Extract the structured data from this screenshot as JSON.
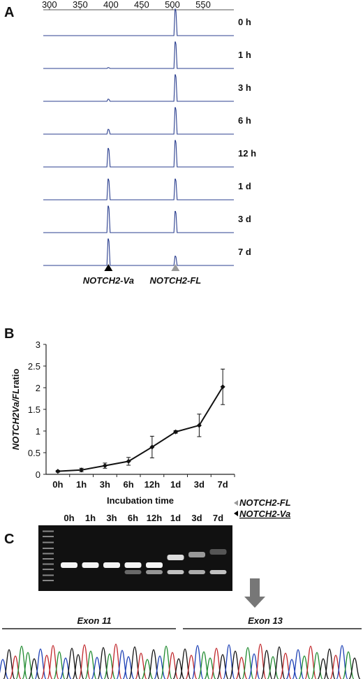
{
  "panels": {
    "a": "A",
    "b": "B",
    "c": "C"
  },
  "chart_data": [
    {
      "type": "line",
      "panel": "A",
      "x_axis_ticks": [
        "300",
        "350",
        "400",
        "450",
        "500",
        "550"
      ],
      "xlim": [
        290,
        600
      ],
      "peak_positions": [
        396,
        505
      ],
      "traces": [
        {
          "label": "0 h",
          "heights": [
            0.0,
            1.0
          ]
        },
        {
          "label": "1 h",
          "heights": [
            0.03,
            1.0
          ]
        },
        {
          "label": "3 h",
          "heights": [
            0.08,
            1.0
          ]
        },
        {
          "label": "6 h",
          "heights": [
            0.18,
            1.0
          ]
        },
        {
          "label": "12 h",
          "heights": [
            0.7,
            1.0
          ]
        },
        {
          "label": "1 d",
          "heights": [
            0.78,
            0.78
          ]
        },
        {
          "label": "3 d",
          "heights": [
            1.0,
            0.8
          ]
        },
        {
          "label": "7 d",
          "heights": [
            1.0,
            0.35
          ]
        }
      ],
      "markers": [
        {
          "label": "NOTCH2-Va",
          "color": "#000000"
        },
        {
          "label": "NOTCH2-FL",
          "color": "#999999"
        }
      ]
    },
    {
      "type": "line",
      "panel": "B",
      "categories": [
        "0h",
        "1h",
        "3h",
        "6h",
        "12h",
        "1d",
        "3d",
        "7d"
      ],
      "values": [
        0.07,
        0.1,
        0.2,
        0.3,
        0.63,
        0.98,
        1.13,
        2.02
      ],
      "errors": [
        0.02,
        0.04,
        0.06,
        0.09,
        0.25,
        0.03,
        0.26,
        0.41
      ],
      "ylabel_a": "NOTCH2",
      "ylabel_b": "Va/FL",
      "ylabel_c": "ratio",
      "xlabel": "Incubation time",
      "yticks": [
        "0",
        "0.5",
        "1",
        "1.5",
        "2",
        "2.5",
        "3"
      ],
      "ylim": [
        0,
        3
      ]
    }
  ],
  "gel": {
    "lanes": [
      "0h",
      "1h",
      "3h",
      "6h",
      "12h",
      "1d",
      "3d",
      "7d"
    ],
    "fl_intensity": [
      1.0,
      1.0,
      1.0,
      1.0,
      1.0,
      0.9,
      0.6,
      0.3
    ],
    "va_intensity": [
      0.0,
      0.0,
      0.0,
      0.4,
      0.6,
      0.8,
      0.7,
      0.8
    ],
    "label_fl": "NOTCH2-FL",
    "label_va": "NOTCH2-Va",
    "color_fl_marker": "#999999",
    "color_va_marker": "#000000"
  },
  "sequence": {
    "exon_left": "Exon 11",
    "exon_right": "Exon 13"
  }
}
